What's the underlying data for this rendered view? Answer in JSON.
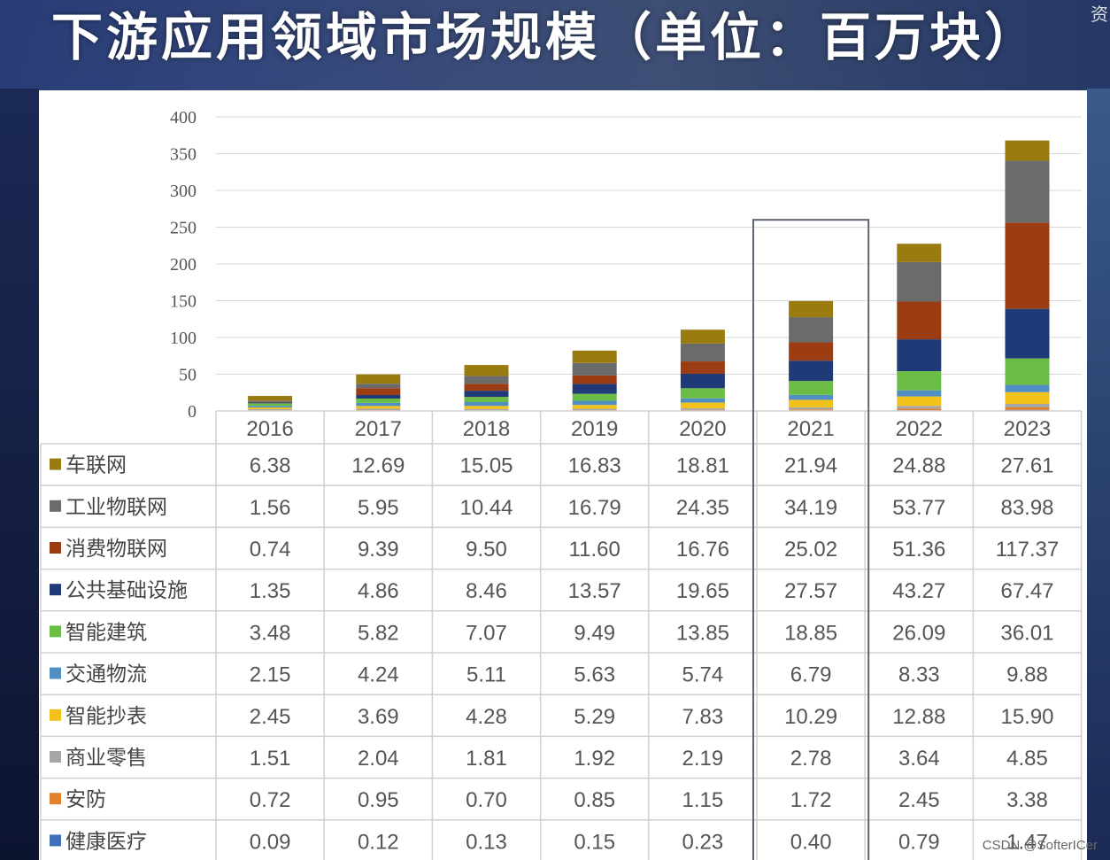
{
  "title": "下游应用领域市场规模（单位：百万块）",
  "corner_mark": "资",
  "watermark": "CSDN @SofterICer",
  "chart_data": {
    "type": "bar",
    "stacked": true,
    "title": "下游应用领域市场规模（单位：百万块）",
    "categories": [
      "2016",
      "2017",
      "2018",
      "2019",
      "2020",
      "2021",
      "2022",
      "2023"
    ],
    "ylim": [
      0,
      400
    ],
    "yticks": [
      0,
      50,
      100,
      150,
      200,
      250,
      300,
      350,
      400
    ],
    "grid": true,
    "highlight_category": "2021",
    "series": [
      {
        "name": "车联网",
        "color": "#9a7b0f",
        "values": [
          "6.38",
          "12.69",
          "15.05",
          "16.83",
          "18.81",
          "21.94",
          "24.88",
          "27.61"
        ]
      },
      {
        "name": "工业物联网",
        "color": "#6b6b6b",
        "values": [
          "1.56",
          "5.95",
          "10.44",
          "16.79",
          "24.35",
          "34.19",
          "53.77",
          "83.98"
        ]
      },
      {
        "name": "消费物联网",
        "color": "#9c3c12",
        "values": [
          "0.74",
          "9.39",
          "9.50",
          "11.60",
          "16.76",
          "25.02",
          "51.36",
          "117.37"
        ]
      },
      {
        "name": "公共基础设施",
        "color": "#203a78",
        "values": [
          "1.35",
          "4.86",
          "8.46",
          "13.57",
          "19.65",
          "27.57",
          "43.27",
          "67.47"
        ]
      },
      {
        "name": "智能建筑",
        "color": "#6cbd45",
        "values": [
          "3.48",
          "5.82",
          "7.07",
          "9.49",
          "13.85",
          "18.85",
          "26.09",
          "36.01"
        ]
      },
      {
        "name": "交通物流",
        "color": "#4f8fc4",
        "values": [
          "2.15",
          "4.24",
          "5.11",
          "5.63",
          "5.74",
          "6.79",
          "8.33",
          "9.88"
        ]
      },
      {
        "name": "智能抄表",
        "color": "#f2c21b",
        "values": [
          "2.45",
          "3.69",
          "4.28",
          "5.29",
          "7.83",
          "10.29",
          "12.88",
          "15.90"
        ]
      },
      {
        "name": "商业零售",
        "color": "#a6a6a6",
        "values": [
          "1.51",
          "2.04",
          "1.81",
          "1.92",
          "2.19",
          "2.78",
          "3.64",
          "4.85"
        ]
      },
      {
        "name": "安防",
        "color": "#e2802e",
        "values": [
          "0.72",
          "0.95",
          "0.70",
          "0.85",
          "1.15",
          "1.72",
          "2.45",
          "3.38"
        ]
      },
      {
        "name": "健康医疗",
        "color": "#3f6fb8",
        "values": [
          "0.09",
          "0.12",
          "0.13",
          "0.15",
          "0.23",
          "0.40",
          "0.79",
          "1.47"
        ]
      }
    ]
  }
}
